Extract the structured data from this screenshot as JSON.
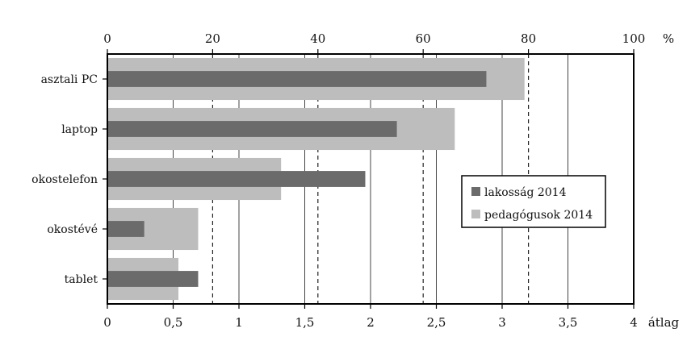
{
  "chart_data": {
    "type": "bar",
    "orientation": "horizontal",
    "categories": [
      "asztali PC",
      "laptop",
      "okostelefon",
      "okostévé",
      "tablet"
    ],
    "series": [
      {
        "name": "pedagógusok 2014",
        "color": "#bdbdbd",
        "axis": "bottom",
        "values": [
          3.17,
          2.64,
          1.32,
          0.69,
          0.54
        ]
      },
      {
        "name": "lakosság 2014",
        "color": "#6b6b6b",
        "axis": "bottom",
        "values": [
          2.88,
          2.2,
          1.96,
          0.28,
          0.69
        ]
      }
    ],
    "axis_top": {
      "label": "%",
      "ticks": [
        "0",
        "20",
        "40",
        "60",
        "80",
        "100"
      ],
      "range": [
        0,
        100
      ],
      "dashed_gridlines": [
        20,
        40,
        60,
        80
      ]
    },
    "axis_bottom": {
      "label": "átlag",
      "ticks": [
        "0",
        "0,5",
        "1",
        "1,5",
        "2",
        "2,5",
        "3",
        "3,5",
        "4"
      ],
      "range": [
        0,
        4
      ],
      "solid_gridlines": [
        0.5,
        1,
        1.5,
        2,
        2.5,
        3,
        3.5
      ]
    },
    "legend": {
      "placement": "right",
      "items": [
        "lakosság 2014",
        "pedagógusok 2014"
      ]
    }
  }
}
